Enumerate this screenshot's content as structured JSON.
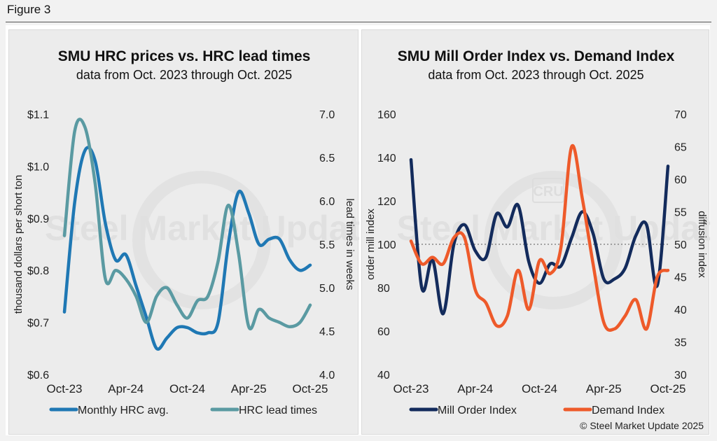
{
  "figure_label": "Figure 3",
  "copyright": "© Steel Market Update 2025",
  "watermark": "Steel Market Update",
  "watermark_logo": "CRU",
  "chart_data": [
    {
      "type": "line",
      "title": "SMU HRC prices vs. HRC lead times",
      "subtitle": "data from Oct. 2023 through Oct. 2025",
      "ylabel_left": "thousand dollars per short ton",
      "ylabel_right": "lead times in weeks",
      "ylim_left": [
        0.6,
        1.1
      ],
      "ylim_right": [
        4.0,
        7.0
      ],
      "yticks_left": [
        "$0.6",
        "$0.7",
        "$0.8",
        "$0.9",
        "$1.0",
        "$1.1"
      ],
      "yticks_right": [
        "4.0",
        "4.5",
        "5.0",
        "5.5",
        "6.0",
        "6.5",
        "7.0"
      ],
      "x_tick_labels": [
        "Oct-23",
        "Apr-24",
        "Oct-24",
        "Apr-25",
        "Oct-25"
      ],
      "x": [
        "2023-10",
        "2023-11",
        "2023-12",
        "2024-01",
        "2024-02",
        "2024-03",
        "2024-04",
        "2024-05",
        "2024-06",
        "2024-07",
        "2024-08",
        "2024-09",
        "2024-10",
        "2024-11",
        "2024-12",
        "2025-01",
        "2025-02",
        "2025-03",
        "2025-04",
        "2025-05",
        "2025-06",
        "2025-07",
        "2025-08",
        "2025-09",
        "2025-10"
      ],
      "series": [
        {
          "name": "Monthly HRC avg.",
          "axis": "left",
          "color": "#1f78b4",
          "values": [
            0.72,
            0.93,
            1.03,
            1.01,
            0.89,
            0.82,
            0.83,
            0.77,
            0.71,
            0.65,
            0.67,
            0.69,
            0.69,
            0.68,
            0.68,
            0.7,
            0.85,
            0.95,
            0.91,
            0.85,
            0.86,
            0.86,
            0.82,
            0.8,
            0.81
          ]
        },
        {
          "name": "HRC lead times",
          "axis": "right",
          "color": "#5a9aa2",
          "values": [
            5.6,
            6.8,
            6.85,
            6.2,
            5.1,
            5.2,
            5.1,
            4.9,
            4.6,
            4.9,
            5.0,
            4.8,
            4.65,
            4.85,
            4.9,
            5.3,
            5.95,
            5.4,
            4.55,
            4.75,
            4.65,
            4.6,
            4.55,
            4.6,
            4.8
          ]
        }
      ]
    },
    {
      "type": "line",
      "title": "SMU Mill Order Index vs. Demand Index",
      "subtitle": "data from Oct. 2023 through Oct. 2025",
      "ylabel_left": "order mill index",
      "ylabel_right": "diffusion index",
      "ylim_left": [
        40,
        160
      ],
      "ylim_right": [
        30,
        70
      ],
      "yticks_left": [
        "40",
        "60",
        "80",
        "100",
        "120",
        "140",
        "160"
      ],
      "yticks_right": [
        "30",
        "35",
        "40",
        "45",
        "50",
        "55",
        "60",
        "65",
        "70"
      ],
      "x_tick_labels": [
        "Oct-23",
        "Apr-24",
        "Oct-24",
        "Apr-25",
        "Oct-25"
      ],
      "reference_line": {
        "axis": "left",
        "value": 100,
        "style": "dotted"
      },
      "x": [
        "2023-10",
        "2023-11",
        "2023-12",
        "2024-01",
        "2024-02",
        "2024-03",
        "2024-04",
        "2024-05",
        "2024-06",
        "2024-07",
        "2024-08",
        "2024-09",
        "2024-10",
        "2024-11",
        "2024-12",
        "2025-01",
        "2025-02",
        "2025-03",
        "2025-04",
        "2025-05",
        "2025-06",
        "2025-07",
        "2025-08",
        "2025-09",
        "2025-10"
      ],
      "series": [
        {
          "name": "Mill Order Index",
          "axis": "left",
          "color": "#132b5c",
          "values": [
            139,
            80,
            93,
            68,
            100,
            109,
            97,
            94,
            114,
            108,
            118,
            92,
            82,
            91,
            90,
            103,
            115,
            105,
            84,
            84,
            89,
            104,
            109,
            81,
            136
          ]
        },
        {
          "name": "Demand Index",
          "axis": "right",
          "color": "#ee5a2a",
          "values": [
            50.5,
            47,
            48,
            47,
            51,
            51,
            43,
            41,
            37.5,
            39,
            46,
            40,
            47.5,
            45.5,
            49.5,
            65,
            57,
            47,
            38,
            37,
            39,
            41.5,
            37,
            45,
            46
          ]
        }
      ]
    }
  ]
}
